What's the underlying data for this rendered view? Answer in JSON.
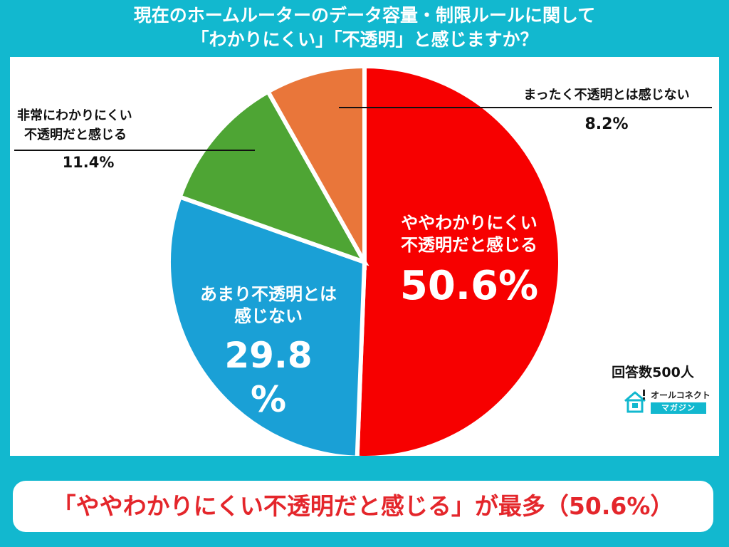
{
  "title": {
    "line1": "現在のホームルーターのデータ容量・制限ルールに関して",
    "line2": "「わかりにくい」「不透明」と感じますか？"
  },
  "respondents": "回答数500人",
  "logo": {
    "name": "オールコネクト",
    "sub": "マガジン"
  },
  "banner": "「ややわかりにくい不透明だと感じる」が最多（50.6%）",
  "colors": {
    "background": "#12b8cf",
    "banner_text": "#e4262b",
    "slice_1": "#f70000",
    "slice_2": "#1aa0d6",
    "slice_3": "#4ea534",
    "slice_4": "#e9763a"
  },
  "chart_data": {
    "type": "pie",
    "title": "現在のホームルーターのデータ容量・制限ルールに関して「わかりにくい」「不透明」と感じますか？",
    "slices": [
      {
        "label_lines": [
          "ややわかりにくい",
          "不透明だと感じる"
        ],
        "value": 50.6,
        "value_text": "50.6%",
        "color": "#f70000"
      },
      {
        "label_lines": [
          "あまり不透明とは",
          "感じない"
        ],
        "value": 29.8,
        "value_text": "29.8%",
        "color": "#1aa0d6"
      },
      {
        "label_lines": [
          "非常にわかりにくい",
          "不透明だと感じる"
        ],
        "value": 11.4,
        "value_text": "11.4%",
        "color": "#4ea534"
      },
      {
        "label_lines": [
          "まったく不透明とは感じない"
        ],
        "value": 8.2,
        "value_text": "8.2%",
        "color": "#e9763a"
      }
    ],
    "start": "12 o'clock",
    "direction": "clockwise",
    "legend": "none"
  }
}
